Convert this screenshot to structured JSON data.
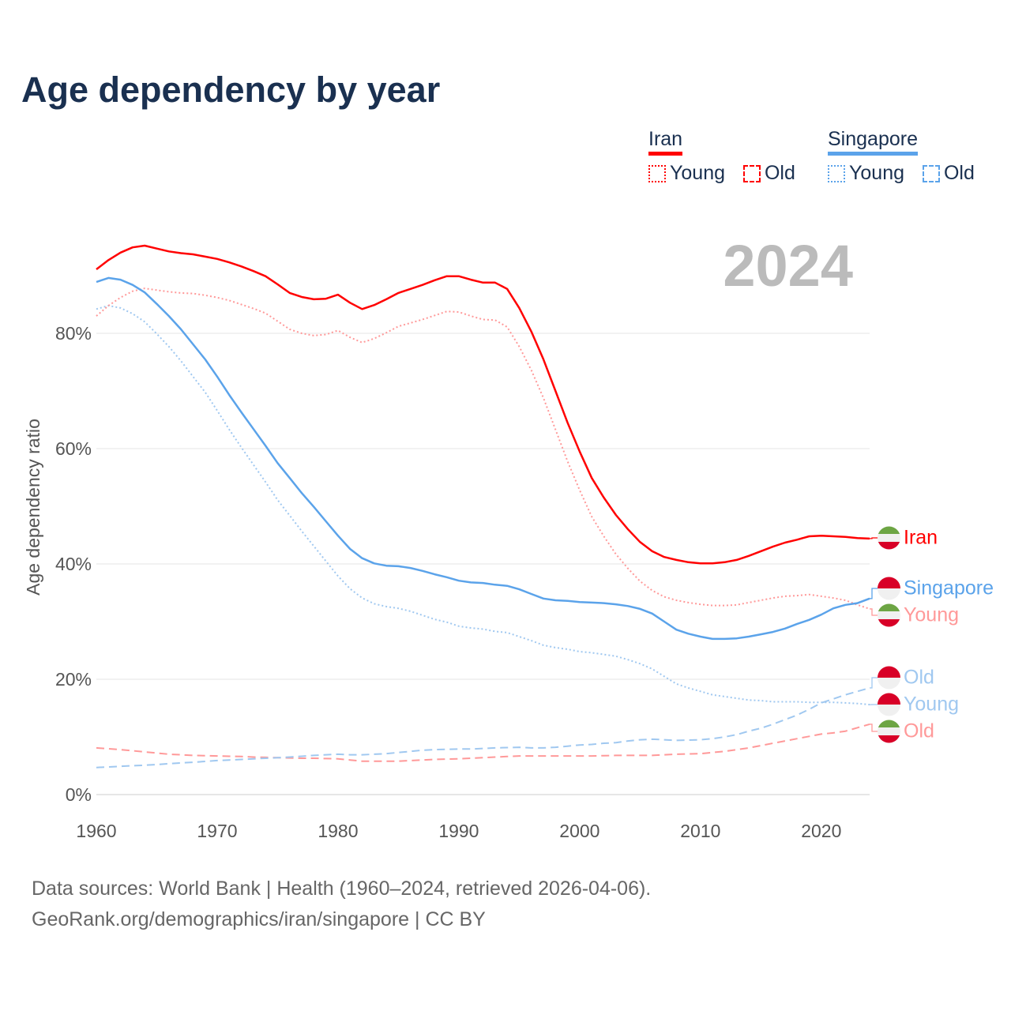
{
  "title": "Age dependency by year",
  "legend": {
    "groups": [
      {
        "name": "Iran",
        "color": "#ff0000",
        "young": "Young",
        "old": "Old"
      },
      {
        "name": "Singapore",
        "color": "#5ba3ea",
        "young": "Young",
        "old": "Old"
      }
    ]
  },
  "year_display": "2024",
  "end_labels": {
    "iran_total": "Iran",
    "singapore_total": "Singapore",
    "iran_young": "Young",
    "singapore_old": "Old",
    "singapore_young": "Young",
    "iran_old": "Old"
  },
  "footer": {
    "line1": "Data sources: World Bank | Health (1960–2024, retrieved 2026-04-06).",
    "line2": "GeoRank.org/demographics/iran/singapore | CC BY"
  },
  "chart_data": {
    "type": "line",
    "title": "Age dependency by year",
    "xlabel": "",
    "ylabel": "Age dependency ratio",
    "xlim": [
      1960,
      2024
    ],
    "ylim": [
      0,
      100
    ],
    "x_ticks": [
      1960,
      1970,
      1980,
      1990,
      2000,
      2010,
      2020
    ],
    "y_ticks": [
      0,
      20,
      40,
      60,
      80
    ],
    "y_tick_labels": [
      "0%",
      "20%",
      "40%",
      "60%",
      "80%"
    ],
    "grid": "horizontal",
    "legend_position": "top-right",
    "x_start": 1960,
    "series": [
      {
        "id": "iran_total",
        "name": "Iran",
        "color": "#ff0000",
        "style": "solid",
        "values": [
          91.1,
          92.7,
          94,
          94.9,
          95.2,
          94.7,
          94.2,
          93.9,
          93.7,
          93.3,
          92.9,
          92.3,
          91.6,
          90.8,
          89.9,
          88.5,
          87,
          86.3,
          85.9,
          86,
          86.7,
          85.3,
          84.2,
          84.9,
          85.9,
          87,
          87.7,
          88.4,
          89.2,
          89.9,
          89.9,
          89.3,
          88.8,
          88.8,
          87.7,
          84.4,
          80.3,
          75.5,
          70,
          64.5,
          59.5,
          54.9,
          51.5,
          48.5,
          46,
          43.8,
          42.2,
          41.2,
          40.7,
          40.3,
          40.1,
          40.1,
          40.3,
          40.7,
          41.4,
          42.2,
          43,
          43.7,
          44.2,
          44.8,
          44.9,
          44.8,
          44.7,
          44.5,
          44.4
        ]
      },
      {
        "id": "iran_young",
        "name": "Iran Young",
        "color": "#ff9999",
        "style": "dotted",
        "values": [
          83,
          84.8,
          86.2,
          87.3,
          87.8,
          87.5,
          87.2,
          87,
          86.9,
          86.6,
          86.2,
          85.7,
          85,
          84.3,
          83.5,
          82.1,
          80.7,
          80,
          79.6,
          79.8,
          80.5,
          79.3,
          78.4,
          79.1,
          80.1,
          81.2,
          81.8,
          82.4,
          83.1,
          83.8,
          83.7,
          83,
          82.4,
          82.3,
          81.1,
          77.7,
          73.6,
          68.8,
          63.3,
          57.8,
          52.8,
          48.2,
          44.8,
          41.7,
          39.2,
          37,
          35.4,
          34.3,
          33.7,
          33.3,
          33,
          32.8,
          32.8,
          32.9,
          33.3,
          33.7,
          34.1,
          34.4,
          34.5,
          34.7,
          34.4,
          34.1,
          33.7,
          32.9,
          32.2
        ]
      },
      {
        "id": "iran_old",
        "name": "Iran Old",
        "color": "#ff9999",
        "style": "dashed",
        "values": [
          8.1,
          7.95,
          7.8,
          7.6,
          7.4,
          7.2,
          7,
          6.9,
          6.8,
          6.75,
          6.7,
          6.65,
          6.6,
          6.5,
          6.45,
          6.4,
          6.35,
          6.3,
          6.3,
          6.25,
          6.2,
          6,
          5.8,
          5.8,
          5.8,
          5.8,
          5.9,
          6,
          6.1,
          6.15,
          6.2,
          6.3,
          6.4,
          6.5,
          6.6,
          6.7,
          6.7,
          6.7,
          6.7,
          6.7,
          6.7,
          6.7,
          6.75,
          6.8,
          6.8,
          6.8,
          6.8,
          6.9,
          7,
          7.05,
          7.1,
          7.3,
          7.5,
          7.8,
          8.1,
          8.5,
          8.9,
          9.3,
          9.7,
          10.1,
          10.5,
          10.7,
          11,
          11.6,
          12.2
        ]
      },
      {
        "id": "singapore_total",
        "name": "Singapore",
        "color": "#5ba3ea",
        "style": "solid",
        "values": [
          88.9,
          89.6,
          89.3,
          88.4,
          87.1,
          85.1,
          83,
          80.7,
          78.1,
          75.5,
          72.5,
          69.3,
          66.3,
          63.4,
          60.5,
          57.5,
          54.9,
          52.3,
          49.9,
          47.4,
          44.9,
          42.6,
          41,
          40.1,
          39.7,
          39.6,
          39.3,
          38.8,
          38.2,
          37.7,
          37.1,
          36.8,
          36.7,
          36.4,
          36.2,
          35.6,
          34.8,
          34,
          33.7,
          33.6,
          33.4,
          33.3,
          33.2,
          33,
          32.7,
          32.2,
          31.4,
          30,
          28.6,
          27.9,
          27.4,
          27,
          27,
          27.1,
          27.4,
          27.8,
          28.2,
          28.8,
          29.6,
          30.3,
          31.2,
          32.3,
          32.9,
          33.2,
          34
        ]
      },
      {
        "id": "singapore_young",
        "name": "Singapore Young",
        "color": "#a0c8f0",
        "style": "dotted",
        "values": [
          84.2,
          84.8,
          84.4,
          83.4,
          82,
          79.9,
          77.7,
          75.2,
          72.5,
          69.8,
          66.6,
          63.3,
          60.2,
          57.2,
          54.2,
          51.1,
          48.4,
          45.7,
          43.1,
          40.5,
          37.9,
          35.7,
          34.1,
          33.1,
          32.6,
          32.3,
          31.8,
          31.1,
          30.4,
          29.9,
          29.2,
          28.9,
          28.7,
          28.3,
          28.1,
          27.4,
          26.7,
          25.9,
          25.5,
          25.2,
          24.8,
          24.6,
          24.3,
          24,
          23.4,
          22.7,
          21.8,
          20.5,
          19.2,
          18.5,
          17.9,
          17.3,
          17,
          16.7,
          16.4,
          16.3,
          16.1,
          16.1,
          16.1,
          16,
          16,
          16,
          15.9,
          15.8,
          15.6
        ]
      },
      {
        "id": "singapore_old",
        "name": "Singapore Old",
        "color": "#a0c8f0",
        "style": "dashed",
        "values": [
          4.7,
          4.8,
          4.9,
          5,
          5.1,
          5.2,
          5.35,
          5.5,
          5.6,
          5.75,
          5.9,
          6,
          6.1,
          6.2,
          6.3,
          6.4,
          6.5,
          6.65,
          6.8,
          6.9,
          7,
          6.9,
          6.9,
          7,
          7.1,
          7.3,
          7.5,
          7.7,
          7.8,
          7.85,
          7.9,
          7.9,
          8,
          8.1,
          8.15,
          8.2,
          8.1,
          8.1,
          8.2,
          8.4,
          8.6,
          8.7,
          8.9,
          9,
          9.3,
          9.5,
          9.6,
          9.5,
          9.4,
          9.45,
          9.5,
          9.7,
          10,
          10.4,
          11,
          11.5,
          12.2,
          13,
          13.8,
          14.8,
          15.9,
          16.6,
          17.3,
          17.9,
          18.5
        ]
      }
    ]
  }
}
